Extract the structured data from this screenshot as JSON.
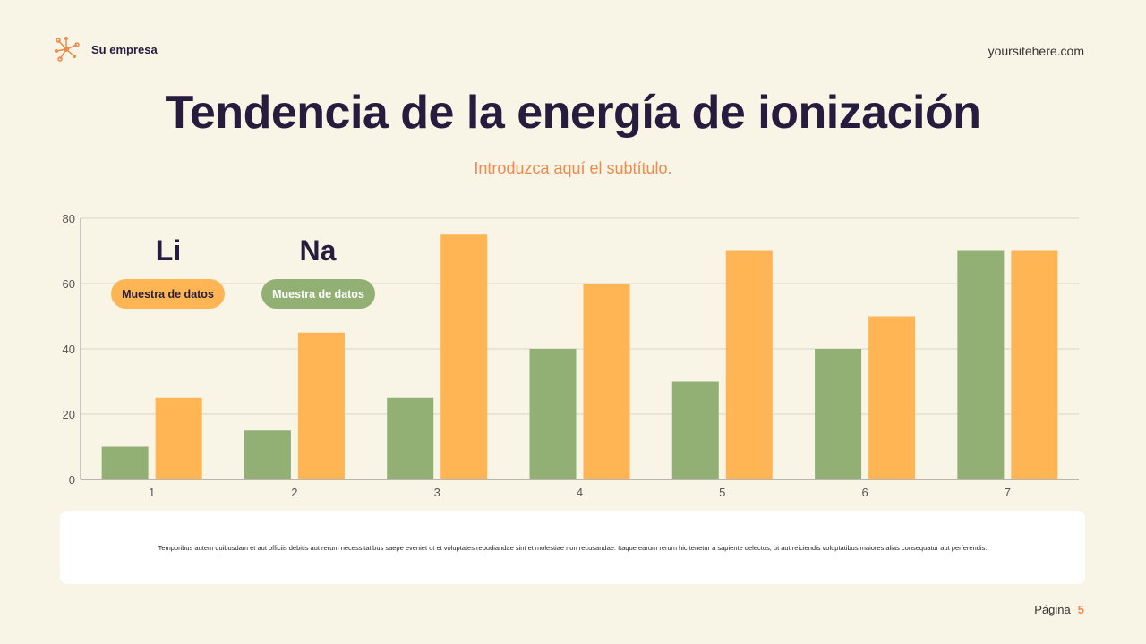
{
  "header": {
    "brand": "Su empresa",
    "site": "yoursitehere.com",
    "logo_icon": "network-nodes-icon"
  },
  "title": "Tendencia de la energía de ionización",
  "subtitle": "Introduzca aquí el subtítulo.",
  "chart_data": {
    "type": "bar",
    "categories": [
      "1",
      "2",
      "3",
      "4",
      "5",
      "6",
      "7"
    ],
    "series": [
      {
        "color": "#93b074",
        "values": [
          10,
          15,
          25,
          40,
          30,
          40,
          70
        ]
      },
      {
        "color": "#ffb554",
        "values": [
          25,
          45,
          75,
          60,
          70,
          50,
          70
        ]
      }
    ],
    "ylim": [
      0,
      80
    ],
    "yticks": [
      "0",
      "20",
      "40",
      "60",
      "80"
    ],
    "grid": true
  },
  "legend": [
    {
      "element": "Li",
      "label": "Muestra de datos",
      "color": "#ffb554"
    },
    {
      "element": "Na",
      "label": "Muestra de datos",
      "color": "#93b074"
    }
  ],
  "note": "Temporibus autem quibusdam et aut officiis debitis aut rerum necessitatibus saepe eveniet ut et voluptates repudiandae sint et molestiae non recusandae. Itaque earum rerum hic tenetur a sapiente delectus, ut aut reiciendis voluptatibus maiores alias consequatur aut perferendis.",
  "footer": {
    "page_label": "Página",
    "page_number": "5"
  }
}
